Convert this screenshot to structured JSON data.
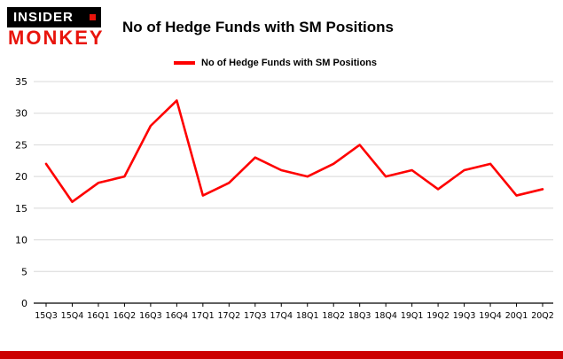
{
  "header": {
    "logo": {
      "top": "INSIDER",
      "bottom": "MONKEY"
    },
    "title": "No of Hedge Funds with SM Positions"
  },
  "legend": {
    "label": "No of Hedge Funds with SM Positions"
  },
  "colors": {
    "line": "#fe0000",
    "grid": "#d8d8d8",
    "axis": "#000000",
    "tick_label": "#000000",
    "bottom_bar": "#cc0000",
    "logo_bg": "#000000",
    "logo_top_text": "#ffffff",
    "logo_bottom_text": "#e8140c",
    "logo_square": "#e8140c"
  },
  "chart_data": {
    "type": "line",
    "title": "No of Hedge Funds with SM Positions",
    "categories": [
      "15Q3",
      "15Q4",
      "16Q1",
      "16Q2",
      "16Q3",
      "16Q4",
      "17Q1",
      "17Q2",
      "17Q3",
      "17Q4",
      "18Q1",
      "18Q2",
      "18Q3",
      "18Q4",
      "19Q1",
      "19Q2",
      "19Q3",
      "19Q4",
      "20Q1",
      "20Q2"
    ],
    "values": [
      22,
      16,
      19,
      20,
      28,
      32,
      17,
      19,
      23,
      21,
      20,
      22,
      25,
      20,
      21,
      18,
      21,
      22,
      17,
      18
    ],
    "series": [
      {
        "name": "No of Hedge Funds with SM Positions",
        "values": [
          22,
          16,
          19,
          20,
          28,
          32,
          17,
          19,
          23,
          21,
          20,
          22,
          25,
          20,
          21,
          18,
          21,
          22,
          17,
          18
        ]
      }
    ],
    "xlabel": "",
    "ylabel": "",
    "ylim": [
      0,
      35
    ],
    "yticks": [
      0,
      5,
      10,
      15,
      20,
      25,
      30,
      35
    ],
    "grid": true,
    "legend_position": "top-left"
  }
}
